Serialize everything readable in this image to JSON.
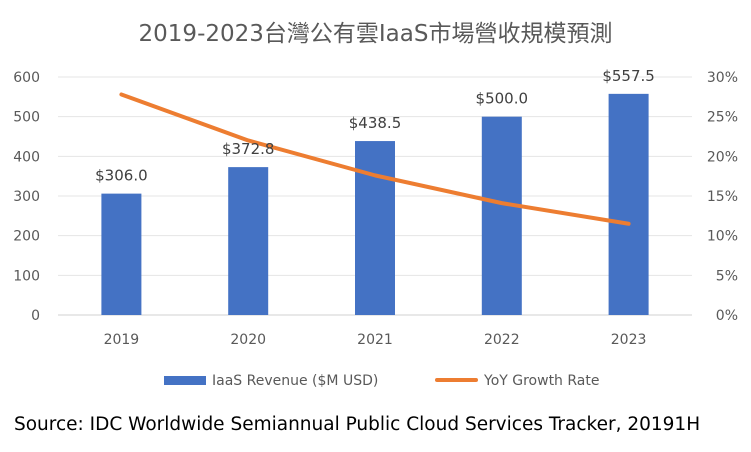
{
  "title": "2019-2023台灣公有雲IaaS市場營收規模預測",
  "source": "Source: IDC Worldwide Semiannual Public Cloud Services Tracker, 20191H",
  "chart_data": {
    "type": "bar",
    "categories": [
      "2019",
      "2020",
      "2021",
      "2022",
      "2023"
    ],
    "series": [
      {
        "name": "IaaS Revenue ($M USD)",
        "type": "bar",
        "axis": "left",
        "color": "#4472C4",
        "values": [
          306.0,
          372.8,
          438.5,
          500.0,
          557.5
        ],
        "data_labels": [
          "$306.0",
          "$372.8",
          "$438.5",
          "$500.0",
          "$557.5"
        ]
      },
      {
        "name": "YoY Growth Rate",
        "type": "line",
        "axis": "right",
        "color": "#ED7D31",
        "values": [
          0.278,
          0.22,
          0.176,
          0.141,
          0.115
        ]
      }
    ],
    "y_left": {
      "ylim": [
        0,
        600
      ],
      "ticks": [
        0,
        100,
        200,
        300,
        400,
        500,
        600
      ],
      "tick_labels": [
        "0",
        "100",
        "200",
        "300",
        "400",
        "500",
        "600"
      ]
    },
    "y_right": {
      "ylim": [
        0,
        0.3
      ],
      "ticks": [
        0,
        0.05,
        0.1,
        0.15,
        0.2,
        0.25,
        0.3
      ],
      "tick_labels": [
        "0%",
        "5%",
        "10%",
        "15%",
        "20%",
        "25%",
        "30%"
      ]
    },
    "grid": true,
    "legend_position": "bottom"
  }
}
